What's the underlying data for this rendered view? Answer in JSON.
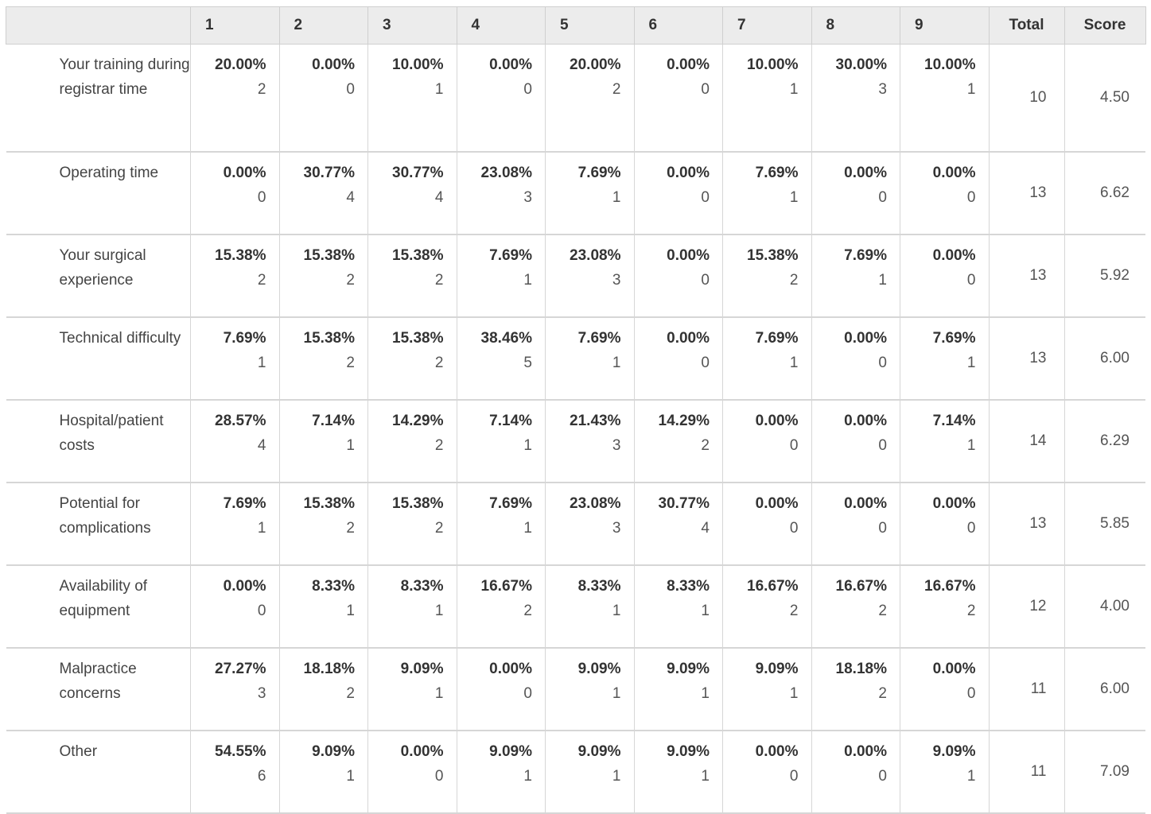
{
  "header": {
    "blank": "",
    "columns": [
      "1",
      "2",
      "3",
      "4",
      "5",
      "6",
      "7",
      "8",
      "9"
    ],
    "total_label": "Total",
    "score_label": "Score"
  },
  "rows": [
    {
      "label": "Your training during registrar time",
      "cells": [
        [
          "20.00%",
          "2"
        ],
        [
          "0.00%",
          "0"
        ],
        [
          "10.00%",
          "1"
        ],
        [
          "0.00%",
          "0"
        ],
        [
          "20.00%",
          "2"
        ],
        [
          "0.00%",
          "0"
        ],
        [
          "10.00%",
          "1"
        ],
        [
          "30.00%",
          "3"
        ],
        [
          "10.00%",
          "1"
        ]
      ],
      "total": "10",
      "score": "4.50"
    },
    {
      "label": "Operating time",
      "cells": [
        [
          "0.00%",
          "0"
        ],
        [
          "30.77%",
          "4"
        ],
        [
          "30.77%",
          "4"
        ],
        [
          "23.08%",
          "3"
        ],
        [
          "7.69%",
          "1"
        ],
        [
          "0.00%",
          "0"
        ],
        [
          "7.69%",
          "1"
        ],
        [
          "0.00%",
          "0"
        ],
        [
          "0.00%",
          "0"
        ]
      ],
      "total": "13",
      "score": "6.62"
    },
    {
      "label": "Your surgical experience",
      "cells": [
        [
          "15.38%",
          "2"
        ],
        [
          "15.38%",
          "2"
        ],
        [
          "15.38%",
          "2"
        ],
        [
          "7.69%",
          "1"
        ],
        [
          "23.08%",
          "3"
        ],
        [
          "0.00%",
          "0"
        ],
        [
          "15.38%",
          "2"
        ],
        [
          "7.69%",
          "1"
        ],
        [
          "0.00%",
          "0"
        ]
      ],
      "total": "13",
      "score": "5.92"
    },
    {
      "label": "Technical difficulty",
      "cells": [
        [
          "7.69%",
          "1"
        ],
        [
          "15.38%",
          "2"
        ],
        [
          "15.38%",
          "2"
        ],
        [
          "38.46%",
          "5"
        ],
        [
          "7.69%",
          "1"
        ],
        [
          "0.00%",
          "0"
        ],
        [
          "7.69%",
          "1"
        ],
        [
          "0.00%",
          "0"
        ],
        [
          "7.69%",
          "1"
        ]
      ],
      "total": "13",
      "score": "6.00"
    },
    {
      "label": "Hospital/patient costs",
      "cells": [
        [
          "28.57%",
          "4"
        ],
        [
          "7.14%",
          "1"
        ],
        [
          "14.29%",
          "2"
        ],
        [
          "7.14%",
          "1"
        ],
        [
          "21.43%",
          "3"
        ],
        [
          "14.29%",
          "2"
        ],
        [
          "0.00%",
          "0"
        ],
        [
          "0.00%",
          "0"
        ],
        [
          "7.14%",
          "1"
        ]
      ],
      "total": "14",
      "score": "6.29"
    },
    {
      "label": "Potential for complications",
      "cells": [
        [
          "7.69%",
          "1"
        ],
        [
          "15.38%",
          "2"
        ],
        [
          "15.38%",
          "2"
        ],
        [
          "7.69%",
          "1"
        ],
        [
          "23.08%",
          "3"
        ],
        [
          "30.77%",
          "4"
        ],
        [
          "0.00%",
          "0"
        ],
        [
          "0.00%",
          "0"
        ],
        [
          "0.00%",
          "0"
        ]
      ],
      "total": "13",
      "score": "5.85"
    },
    {
      "label": "Availability of equipment",
      "cells": [
        [
          "0.00%",
          "0"
        ],
        [
          "8.33%",
          "1"
        ],
        [
          "8.33%",
          "1"
        ],
        [
          "16.67%",
          "2"
        ],
        [
          "8.33%",
          "1"
        ],
        [
          "8.33%",
          "1"
        ],
        [
          "16.67%",
          "2"
        ],
        [
          "16.67%",
          "2"
        ],
        [
          "16.67%",
          "2"
        ]
      ],
      "total": "12",
      "score": "4.00"
    },
    {
      "label": "Malpractice concerns",
      "cells": [
        [
          "27.27%",
          "3"
        ],
        [
          "18.18%",
          "2"
        ],
        [
          "9.09%",
          "1"
        ],
        [
          "0.00%",
          "0"
        ],
        [
          "9.09%",
          "1"
        ],
        [
          "9.09%",
          "1"
        ],
        [
          "9.09%",
          "1"
        ],
        [
          "18.18%",
          "2"
        ],
        [
          "0.00%",
          "0"
        ]
      ],
      "total": "11",
      "score": "6.00"
    },
    {
      "label": "Other",
      "cells": [
        [
          "54.55%",
          "6"
        ],
        [
          "9.09%",
          "1"
        ],
        [
          "0.00%",
          "0"
        ],
        [
          "9.09%",
          "1"
        ],
        [
          "9.09%",
          "1"
        ],
        [
          "9.09%",
          "1"
        ],
        [
          "0.00%",
          "0"
        ],
        [
          "0.00%",
          "0"
        ],
        [
          "9.09%",
          "1"
        ]
      ],
      "total": "11",
      "score": "7.09"
    }
  ]
}
